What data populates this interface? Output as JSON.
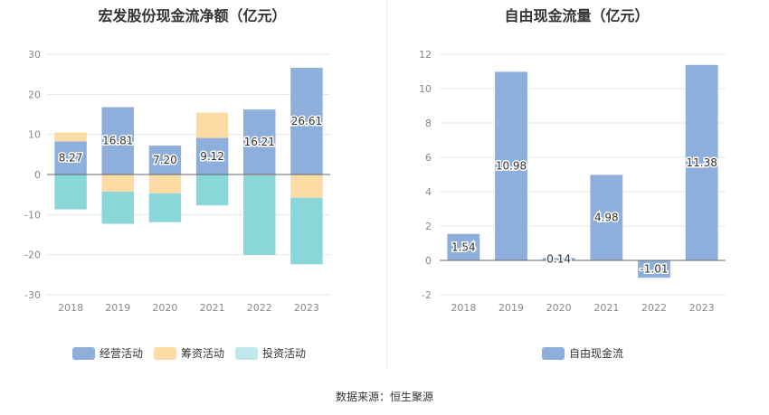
{
  "titles": {
    "left": "宏发股份现金流净额（亿元）",
    "right": "自由现金流量（亿元）"
  },
  "source": "数据来源：恒生聚源",
  "chart_data": [
    {
      "type": "bar",
      "stacked": true,
      "title": "宏发股份现金流净额（亿元）",
      "categories": [
        "2018",
        "2019",
        "2020",
        "2021",
        "2022",
        "2023"
      ],
      "series": [
        {
          "name": "经营活动",
          "color": "#8eaedb",
          "values": [
            8.27,
            16.81,
            7.2,
            9.12,
            16.21,
            26.61
          ],
          "labels": [
            "8.27",
            "16.81",
            "7.20",
            "9.12",
            "16.21",
            "26.61"
          ]
        },
        {
          "name": "筹资活动",
          "color": "#fddba5",
          "values": [
            2.2,
            -4.3,
            -4.7,
            6.3,
            -0.2,
            -5.8
          ]
        },
        {
          "name": "投资活动",
          "color": "#8ad7da",
          "values": [
            -8.7,
            -8.0,
            -7.2,
            -7.7,
            -19.9,
            -16.6
          ]
        }
      ],
      "ylim": [
        -30,
        30
      ],
      "yticks": [
        -30,
        -20,
        -10,
        0,
        10,
        20,
        30
      ],
      "grid": true,
      "legend": "bottom",
      "legend_swatch_colors": [
        "#8eaedb",
        "#fddba5",
        "#bfe8ea"
      ]
    },
    {
      "type": "bar",
      "title": "自由现金流量（亿元）",
      "categories": [
        "2018",
        "2019",
        "2020",
        "2021",
        "2022",
        "2023"
      ],
      "series": [
        {
          "name": "自由现金流",
          "color": "#8eaedb",
          "values": [
            1.54,
            10.98,
            0.14,
            4.98,
            -1.01,
            11.38
          ],
          "labels": [
            "1.54",
            "10.98",
            "0.14",
            "4.98",
            "-1.01",
            "11.38"
          ]
        }
      ],
      "ylim": [
        -2,
        12
      ],
      "yticks": [
        -2,
        0,
        2,
        4,
        6,
        8,
        10,
        12
      ],
      "grid": true,
      "legend": "bottom"
    }
  ]
}
